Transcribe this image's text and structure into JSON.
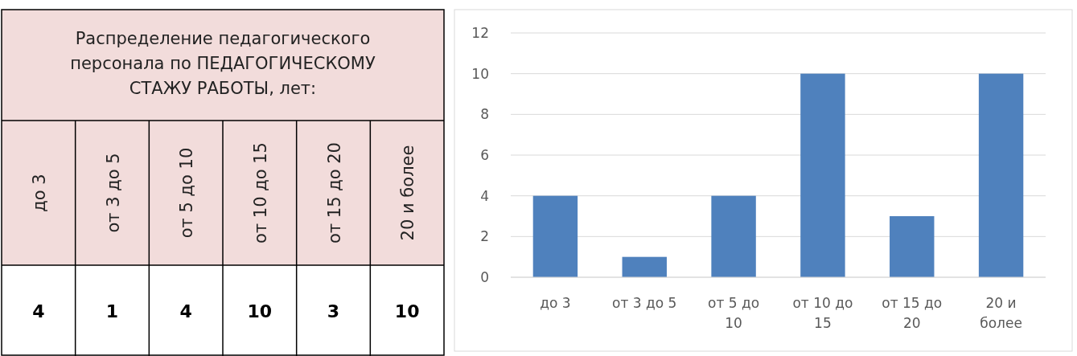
{
  "chart_data": [
    {
      "type": "other",
      "title": "Распределение педагогического персонала по ПЕДАГОГИЧЕСКОМУ СТАЖУ РАБОТЫ, лет:",
      "categories": [
        "до 3",
        "от 3 до 5",
        "от 5 до 10",
        "от 10 до 15",
        "от 15 до 20",
        "20 и более"
      ],
      "value_labels": [
        "4",
        "1",
        "4",
        "10",
        "3",
        "10"
      ]
    },
    {
      "type": "bar",
      "categories": [
        "до 3",
        "от 3 до 5",
        "от 5 до 10",
        "от 10 до 15",
        "от 15 до 20",
        "20 и более"
      ],
      "values": [
        4,
        1,
        4,
        10,
        3,
        10
      ],
      "color": "#4f81bd",
      "ylim": [
        0,
        12
      ],
      "yticks": [
        0,
        2,
        4,
        6,
        8,
        10,
        12
      ],
      "grid": "y"
    }
  ]
}
